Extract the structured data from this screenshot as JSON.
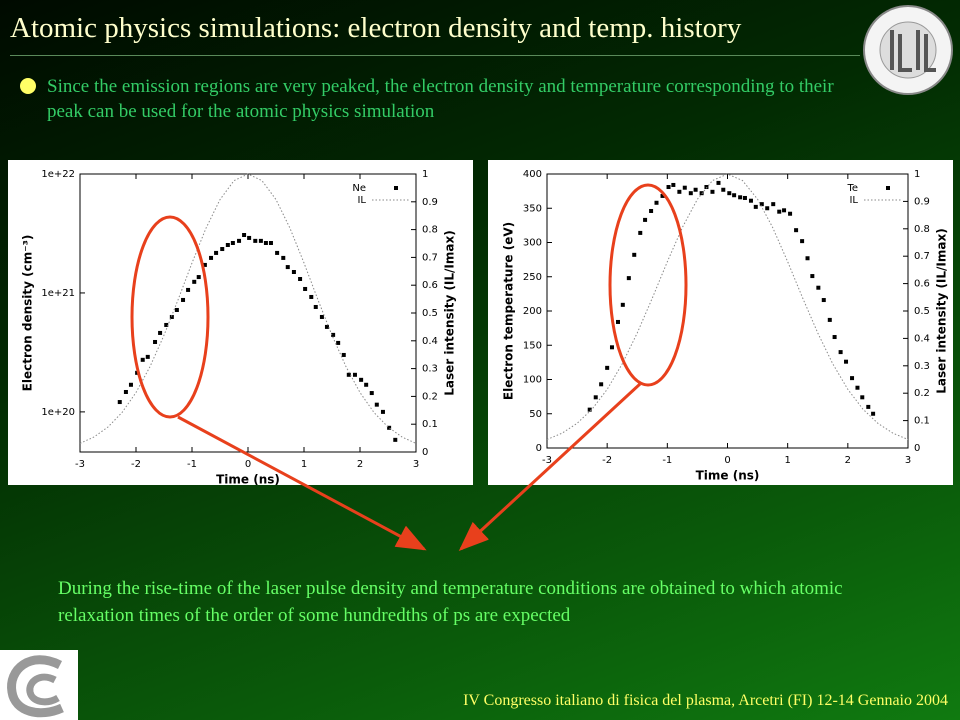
{
  "title": "Atomic physics simulations: electron density and temp. history",
  "bullet": "Since the emission regions are very peaked, the electron density and temperature corresponding to their peak can be used for the atomic physics simulation",
  "note": "During the rise-time of the laser pulse density and temperature conditions are obtained to which atomic relaxation times of the order of some hundredths of ps are expected",
  "footer": "IV Congresso italiano di fisica del plasma, Arcetri (FI) 12-14 Gennaio 2004",
  "chart_data": [
    {
      "type": "scatter",
      "xlabel": "Time (ns)",
      "ylabel": "Electron density (cm⁻³)",
      "y2label": "Laser intensity (IL/Imax)",
      "xlim": [
        -3,
        3
      ],
      "xticks": [
        -3,
        -2,
        -1,
        0,
        1,
        2,
        3
      ],
      "ylim": [
        4.6e+19,
        1e+22
      ],
      "log_y": true,
      "yticks": [
        {
          "value": 1e+20,
          "label": "1e+20"
        },
        {
          "value": 1e+21,
          "label": "1e+21"
        },
        {
          "value": 1e+22,
          "label": "1e+22"
        }
      ],
      "y2lim": [
        0,
        1
      ],
      "y2ticks": [
        0,
        0.1,
        0.2,
        0.3,
        0.4,
        0.5,
        0.6,
        0.7,
        0.8,
        0.9,
        1
      ],
      "legend": "top-right",
      "series": [
        {
          "name": "Ne",
          "color": "#000000",
          "marker": "square",
          "x": [
            -2.29,
            -2.18,
            -2.09,
            -1.98,
            -1.88,
            -1.79,
            -1.66,
            -1.57,
            -1.46,
            -1.36,
            -1.27,
            -1.16,
            -1.07,
            -0.96,
            -0.88,
            -0.77,
            -0.66,
            -0.57,
            -0.46,
            -0.36,
            -0.27,
            -0.16,
            -0.07,
            0.02,
            0.13,
            0.23,
            0.32,
            0.41,
            0.52,
            0.63,
            0.71,
            0.82,
            0.93,
            1.02,
            1.13,
            1.21,
            1.32,
            1.41,
            1.52,
            1.61,
            1.71,
            1.8,
            1.91,
            2.02,
            2.11,
            2.21,
            2.3,
            2.41,
            2.52,
            2.63
          ],
          "values": [
            1.21e+20,
            1.47e+20,
            1.69e+20,
            2.13e+20,
            2.74e+20,
            2.9e+20,
            3.87e+20,
            4.61e+20,
            5.38e+20,
            6.28e+20,
            7.19e+20,
            8.73e+20,
            1.06e+21,
            1.24e+21,
            1.36e+21,
            1.72e+21,
            1.97e+21,
            2.17e+21,
            2.34e+21,
            2.53e+21,
            2.63e+21,
            2.74e+21,
            3.07e+21,
            2.9e+21,
            2.74e+21,
            2.74e+21,
            2.63e+21,
            2.63e+21,
            2.17e+21,
            1.97e+21,
            1.65e+21,
            1.5e+21,
            1.31e+21,
            1.08e+21,
            9.25e+20,
            7.62e+20,
            6.28e+20,
            5.18e+20,
            4.44e+20,
            3.8e+20,
            3.01e+20,
            2.05e+20,
            2.05e+20,
            1.86e+20,
            1.69e+20,
            1.44e+20,
            1.15e+20,
            1e+20,
            7.35e+19,
            5.82e+19
          ]
        },
        {
          "name": "IL",
          "color": "#888888",
          "line_style": "dotted",
          "axis": "y2",
          "x": [
            -3,
            -2.75,
            -2.5,
            -2.25,
            -2,
            -1.75,
            -1.5,
            -1.25,
            -1,
            -0.75,
            -0.5,
            -0.25,
            0,
            0.25,
            0.5,
            0.75,
            1,
            1.25,
            1.5,
            1.75,
            2,
            2.25,
            2.5,
            2.75,
            3
          ],
          "values": [
            0.031,
            0.054,
            0.09,
            0.142,
            0.214,
            0.307,
            0.42,
            0.547,
            0.68,
            0.805,
            0.908,
            0.976,
            1,
            0.976,
            0.908,
            0.805,
            0.68,
            0.547,
            0.42,
            0.307,
            0.214,
            0.142,
            0.09,
            0.054,
            0.031
          ]
        }
      ]
    },
    {
      "type": "scatter",
      "xlabel": "Time (ns)",
      "ylabel": "Electron temperature (eV)",
      "y2label": "Laser intensity (IL/Imax)",
      "xlim": [
        -3,
        3
      ],
      "xticks": [
        -3,
        -2,
        -1,
        0,
        1,
        2,
        3
      ],
      "ylim": [
        0,
        400
      ],
      "yticks": [
        0,
        50,
        100,
        150,
        200,
        250,
        300,
        350,
        400
      ],
      "y2lim": [
        0,
        1
      ],
      "y2ticks": [
        0,
        0.1,
        0.2,
        0.3,
        0.4,
        0.5,
        0.6,
        0.7,
        0.8,
        0.9,
        1
      ],
      "legend": "top-right",
      "series": [
        {
          "name": "Te",
          "color": "#000000",
          "marker": "square",
          "x": [
            -2.29,
            -2.19,
            -2.1,
            -2,
            -1.92,
            -1.82,
            -1.74,
            -1.64,
            -1.55,
            -1.45,
            -1.37,
            -1.27,
            -1.18,
            -1.08,
            -0.98,
            -0.9,
            -0.8,
            -0.71,
            -0.61,
            -0.53,
            -0.43,
            -0.35,
            -0.25,
            -0.15,
            -0.07,
            0.03,
            0.11,
            0.21,
            0.29,
            0.39,
            0.47,
            0.57,
            0.66,
            0.76,
            0.86,
            0.94,
            1.04,
            1.14,
            1.24,
            1.33,
            1.41,
            1.51,
            1.6,
            1.7,
            1.78,
            1.88,
            1.97,
            2.07,
            2.16,
            2.24,
            2.34,
            2.42
          ],
          "values": [
            56,
            74,
            93,
            117,
            147,
            184,
            209,
            248,
            282,
            314,
            333,
            346,
            358,
            368,
            381,
            384,
            374,
            380,
            372,
            377,
            372,
            381,
            374,
            387,
            377,
            372,
            369,
            366,
            365,
            361,
            352,
            356,
            350,
            356,
            345,
            347,
            342,
            318,
            302,
            277,
            251,
            234,
            216,
            187,
            162,
            140,
            126,
            102,
            88,
            74,
            60,
            50
          ]
        },
        {
          "name": "IL",
          "color": "#888888",
          "line_style": "dotted",
          "axis": "y2",
          "x": [
            -3,
            -2.75,
            -2.5,
            -2.25,
            -2,
            -1.75,
            -1.5,
            -1.25,
            -1,
            -0.75,
            -0.5,
            -0.25,
            0,
            0.25,
            0.5,
            0.75,
            1,
            1.25,
            1.5,
            1.75,
            2,
            2.25,
            2.5,
            2.75,
            3
          ],
          "values": [
            0.031,
            0.054,
            0.09,
            0.142,
            0.214,
            0.307,
            0.42,
            0.547,
            0.68,
            0.805,
            0.908,
            0.976,
            1,
            0.976,
            0.908,
            0.805,
            0.68,
            0.547,
            0.42,
            0.307,
            0.214,
            0.142,
            0.09,
            0.054,
            0.031
          ]
        }
      ]
    }
  ]
}
